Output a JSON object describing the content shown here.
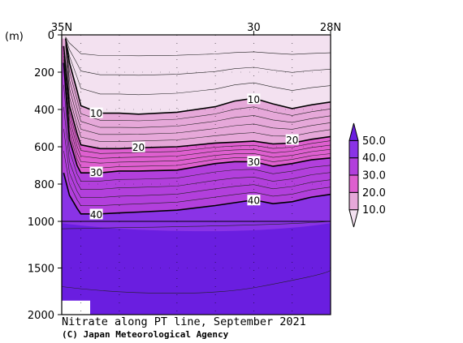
{
  "chart_data": {
    "type": "contour-section",
    "title": "Nitrate along PT line, September 2021",
    "credit": "(C) Japan Meteorological Agency",
    "x_axis": {
      "range": [
        35,
        28
      ],
      "top_labels": [
        {
          "value": 35,
          "label": "35N"
        },
        {
          "value": 30,
          "label": "30"
        },
        {
          "value": 28,
          "label": "28N"
        }
      ],
      "station_positions": [
        34.5,
        33.5,
        32,
        31,
        30,
        29
      ]
    },
    "y_axis": {
      "unit_label": "(m)",
      "reversed": true,
      "range": [
        0,
        2000
      ],
      "segments": [
        {
          "from": 0,
          "to": 1000
        },
        {
          "from": 1000,
          "to": 2000
        }
      ],
      "ticks": [
        {
          "value": 0,
          "label": "0"
        },
        {
          "value": 200,
          "label": "200"
        },
        {
          "value": 400,
          "label": "400"
        },
        {
          "value": 600,
          "label": "600"
        },
        {
          "value": 800,
          "label": "800"
        },
        {
          "value": 1000,
          "label": "1000"
        },
        {
          "value": 1500,
          "label": "1500"
        },
        {
          "value": 2000,
          "label": "2000"
        }
      ]
    },
    "colorbar": {
      "levels": [
        {
          "label": "10.0",
          "value": 10
        },
        {
          "label": "20.0",
          "value": 20
        },
        {
          "label": "30.0",
          "value": 30
        },
        {
          "label": "40.0",
          "value": 40
        },
        {
          "label": "50.0",
          "value": 50
        }
      ],
      "band_colors": [
        "#f3e1f0",
        "#e6a8d9",
        "#de5fcf",
        "#b23fdc",
        "#8a33e6",
        "#6a1ee0"
      ]
    },
    "contours": [
      {
        "level": 10,
        "label": "10",
        "x": [
          34.9,
          34.8,
          34.6,
          34.5,
          34,
          33.5,
          33,
          32,
          31,
          30.5,
          30,
          29.5,
          29,
          28.5,
          28
        ],
        "depth": [
          20,
          150,
          300,
          380,
          420,
          420,
          425,
          415,
          385,
          355,
          340,
          370,
          395,
          375,
          360
        ]
      },
      {
        "level": 20,
        "label": "20",
        "x": [
          34.95,
          34.8,
          34.6,
          34.5,
          34,
          33.5,
          33,
          32,
          31,
          30.5,
          30,
          29.5,
          29,
          28.5,
          28
        ],
        "depth": [
          60,
          380,
          530,
          590,
          610,
          610,
          605,
          600,
          580,
          575,
          570,
          585,
          580,
          560,
          545
        ]
      },
      {
        "level": 30,
        "label": "30",
        "x": [
          34.95,
          34.8,
          34.6,
          34.5,
          34,
          33.5,
          33,
          32,
          31,
          30.5,
          30,
          29.5,
          29,
          28.5,
          28
        ],
        "depth": [
          150,
          560,
          700,
          740,
          740,
          730,
          730,
          725,
          690,
          680,
          680,
          705,
          690,
          670,
          660
        ]
      },
      {
        "level": 40,
        "label": "40",
        "x": [
          34.95,
          34.8,
          34.6,
          34.5,
          34,
          33.5,
          33,
          32,
          31,
          30.5,
          30,
          29.5,
          29,
          28.5,
          28
        ],
        "depth": [
          740,
          860,
          930,
          960,
          960,
          955,
          950,
          940,
          915,
          900,
          885,
          905,
          895,
          870,
          855
        ]
      }
    ],
    "contour_label_positions": [
      {
        "level": 10,
        "x": 34.1,
        "depth": 420
      },
      {
        "level": 10,
        "x": 30.0,
        "depth": 345
      },
      {
        "level": 20,
        "x": 33.0,
        "depth": 603
      },
      {
        "level": 20,
        "x": 29.0,
        "depth": 563
      },
      {
        "level": 30,
        "x": 34.1,
        "depth": 737
      },
      {
        "level": 30,
        "x": 30.0,
        "depth": 680
      },
      {
        "level": 40,
        "x": 34.1,
        "depth": 963
      },
      {
        "level": 40,
        "x": 30.0,
        "depth": 888
      }
    ],
    "lower_band": {
      "level": 50,
      "depth_top": 1020,
      "depth_bottom": 2000
    },
    "axis_break_depth": 1000
  }
}
